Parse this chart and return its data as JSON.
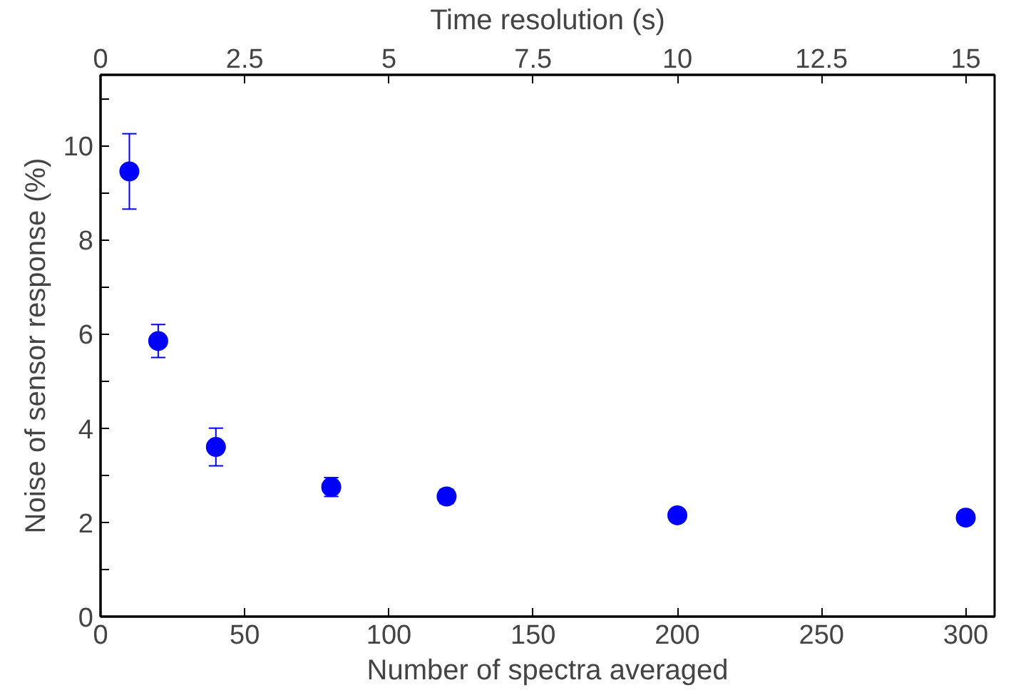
{
  "chart_data": {
    "type": "scatter",
    "xlabel": "Number of spectra averaged",
    "ylabel": "Noise of sensor response (%)",
    "x2label": "Time resolution (s)",
    "x": [
      10,
      20,
      40,
      80,
      120,
      200,
      300
    ],
    "series": [
      {
        "color": "#0000ff",
        "values": [
          9.45,
          5.85,
          3.6,
          2.75,
          2.55,
          2.15,
          2.1
        ],
        "errors": [
          [
            8.65,
            10.25
          ],
          [
            5.5,
            6.2
          ],
          [
            3.2,
            4.0
          ],
          [
            2.55,
            2.95
          ],
          [
            2.4,
            2.7
          ],
          null,
          null
        ]
      }
    ],
    "xlim": [
      0,
      310
    ],
    "xticks": [
      0,
      50,
      100,
      150,
      200,
      250,
      300
    ],
    "x2lim": [
      0,
      15.5
    ],
    "x2ticks": [
      0,
      2.5,
      5,
      7.5,
      10,
      12.5,
      15
    ],
    "ylim": [
      0,
      11.5
    ],
    "yticks": [
      0,
      {
        "value": 1,
        "label": null
      },
      2,
      {
        "value": 3,
        "label": null
      },
      4,
      {
        "value": 5,
        "label": null
      },
      6,
      {
        "value": 7,
        "label": null
      },
      8,
      {
        "value": 9,
        "label": null
      },
      10,
      {
        "value": 11,
        "label": null
      }
    ],
    "marker": "circle",
    "grid": false
  }
}
